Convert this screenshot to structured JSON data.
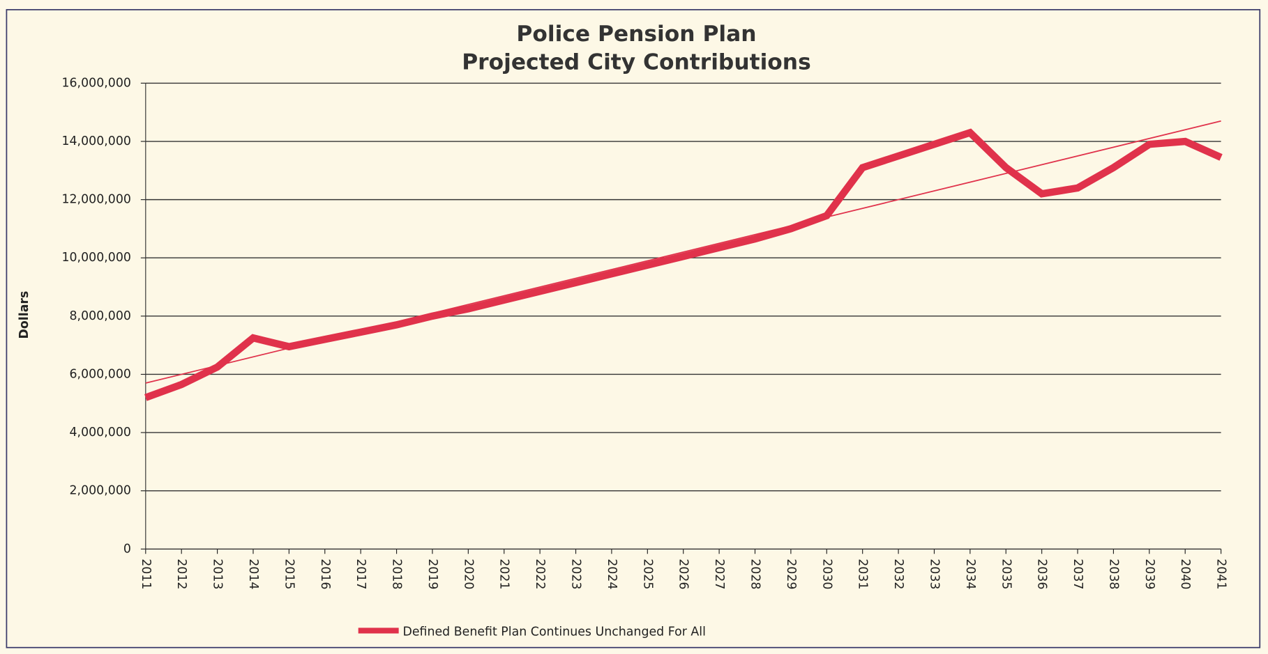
{
  "chart_data": {
    "type": "line",
    "title": [
      "Police Pension Plan",
      "Projected City Contributions"
    ],
    "y_label": "Dollars",
    "x": [
      2011,
      2012,
      2013,
      2014,
      2015,
      2016,
      2017,
      2018,
      2019,
      2020,
      2021,
      2022,
      2023,
      2024,
      2025,
      2026,
      2027,
      2028,
      2029,
      2030,
      2031,
      2032,
      2033,
      2034,
      2035,
      2036,
      2037,
      2038,
      2039,
      2040,
      2041
    ],
    "series": [
      {
        "name": "Defined Benefit Plan Continues Unchanged For All",
        "color": "#e0324b",
        "values": [
          5200000,
          5650000,
          6250000,
          7250000,
          6950000,
          7200000,
          7450000,
          7700000,
          8000000,
          8250000,
          8550000,
          8850000,
          9150000,
          9450000,
          9750000,
          10050000,
          10350000,
          10650000,
          11000000,
          11450000,
          13100000,
          13500000,
          13900000,
          14300000,
          13100000,
          12200000,
          12400000,
          13100000,
          13900000,
          14000000,
          13450000
        ]
      }
    ],
    "trendline": {
      "color": "#e0324b",
      "values": [
        5700000,
        14700000
      ]
    },
    "xlim": [
      2011,
      2041
    ],
    "xticks": [
      2011,
      2012,
      2013,
      2014,
      2015,
      2016,
      2017,
      2018,
      2019,
      2020,
      2021,
      2022,
      2023,
      2024,
      2025,
      2026,
      2027,
      2028,
      2029,
      2030,
      2031,
      2032,
      2033,
      2034,
      2035,
      2036,
      2037,
      2038,
      2039,
      2040,
      2041
    ],
    "ylim": [
      0,
      16000000
    ],
    "yticks": [
      0,
      {
        "value": 2000000,
        "label": "2,000,000"
      },
      {
        "value": 4000000,
        "label": "4,000,000"
      },
      {
        "value": 6000000,
        "label": "6,000,000"
      },
      {
        "value": 8000000,
        "label": "8,000,000"
      },
      {
        "value": 10000000,
        "label": "10,000,000"
      },
      {
        "value": 12000000,
        "label": "12,000,000"
      },
      {
        "value": 14000000,
        "label": "14,000,000"
      },
      {
        "value": 16000000,
        "label": "16,000,000"
      }
    ],
    "grid": true,
    "legend": "bottom"
  }
}
